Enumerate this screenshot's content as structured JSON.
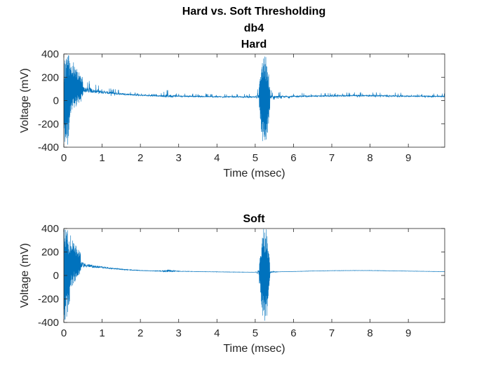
{
  "figure": {
    "title_line1": "Hard vs. Soft Thresholding",
    "title_line2": "db4"
  },
  "chart_data": [
    {
      "type": "line",
      "title": "Hard",
      "xlabel": "Time (msec)",
      "ylabel": "Voltage (mV)",
      "xlim": [
        0,
        9.95
      ],
      "ylim": [
        -400,
        400
      ],
      "xticks": [
        0,
        1,
        2,
        3,
        4,
        5,
        6,
        7,
        8,
        9
      ],
      "yticks": [
        -400,
        -200,
        0,
        200,
        400
      ],
      "grid": false,
      "line_color": "#0072BD",
      "series": [
        {
          "x": [
            0.0,
            0.05,
            0.1,
            0.2,
            0.3,
            0.4,
            0.5,
            0.6,
            0.7,
            0.8,
            1.0,
            1.2,
            1.4,
            1.6,
            1.8,
            2.0,
            2.5,
            2.7,
            3.0,
            3.5,
            4.0,
            4.5,
            5.0,
            5.1,
            5.2,
            5.3,
            5.4,
            5.6,
            6.0,
            6.5,
            7.0,
            7.5,
            8.0,
            8.5,
            9.0,
            9.5,
            9.95
          ],
          "envelope_upper": [
            400,
            400,
            400,
            360,
            300,
            250,
            200,
            180,
            160,
            140,
            120,
            105,
            95,
            80,
            70,
            60,
            55,
            90,
            60,
            60,
            65,
            60,
            60,
            120,
            400,
            400,
            90,
            75,
            70,
            60,
            65,
            70,
            75,
            70,
            65,
            60,
            60
          ],
          "envelope_lower": [
            -400,
            -400,
            -400,
            -120,
            -60,
            -20,
            0,
            10,
            15,
            20,
            25,
            25,
            25,
            25,
            25,
            25,
            25,
            -10,
            25,
            25,
            25,
            25,
            25,
            -60,
            -400,
            -400,
            -20,
            15,
            20,
            25,
            25,
            25,
            25,
            25,
            25,
            20,
            20
          ],
          "baseline": [
            100,
            100,
            100,
            120,
            110,
            100,
            95,
            90,
            85,
            80,
            75,
            65,
            60,
            55,
            50,
            45,
            40,
            40,
            38,
            35,
            33,
            32,
            30,
            30,
            30,
            30,
            30,
            32,
            35,
            38,
            40,
            42,
            42,
            40,
            38,
            36,
            35
          ]
        }
      ]
    },
    {
      "type": "line",
      "title": "Soft",
      "xlabel": "Time (msec)",
      "ylabel": "Voltage (mV)",
      "xlim": [
        0,
        9.95
      ],
      "ylim": [
        -400,
        400
      ],
      "xticks": [
        0,
        1,
        2,
        3,
        4,
        5,
        6,
        7,
        8,
        9
      ],
      "yticks": [
        -400,
        -200,
        0,
        200,
        400
      ],
      "grid": false,
      "line_color": "#0072BD",
      "series": [
        {
          "x": [
            0.0,
            0.05,
            0.1,
            0.2,
            0.3,
            0.4,
            0.5,
            0.6,
            0.7,
            0.8,
            1.0,
            1.2,
            1.4,
            1.6,
            1.8,
            2.0,
            2.5,
            2.7,
            3.0,
            3.5,
            4.0,
            4.5,
            5.0,
            5.1,
            5.2,
            5.3,
            5.4,
            5.6,
            6.0,
            6.5,
            7.0,
            7.5,
            8.0,
            8.5,
            9.0,
            9.5,
            9.95
          ],
          "envelope_upper": [
            400,
            400,
            400,
            330,
            260,
            220,
            190,
            160,
            140,
            125,
            105,
            90,
            80,
            70,
            62,
            55,
            50,
            90,
            45,
            40,
            38,
            35,
            33,
            110,
            400,
            400,
            70,
            38,
            38,
            42,
            45,
            47,
            47,
            45,
            42,
            40,
            38
          ],
          "envelope_lower": [
            -400,
            -400,
            -400,
            -110,
            -50,
            0,
            20,
            30,
            40,
            45,
            45,
            45,
            42,
            40,
            38,
            35,
            32,
            0,
            30,
            28,
            26,
            25,
            25,
            -60,
            -400,
            -400,
            5,
            28,
            30,
            33,
            36,
            38,
            38,
            36,
            34,
            32,
            30
          ],
          "baseline": [
            100,
            100,
            100,
            110,
            100,
            95,
            90,
            85,
            80,
            75,
            70,
            62,
            56,
            50,
            46,
            42,
            38,
            38,
            36,
            33,
            31,
            29,
            28,
            28,
            28,
            28,
            28,
            31,
            34,
            38,
            41,
            42,
            42,
            40,
            37,
            35,
            33
          ]
        }
      ]
    }
  ]
}
